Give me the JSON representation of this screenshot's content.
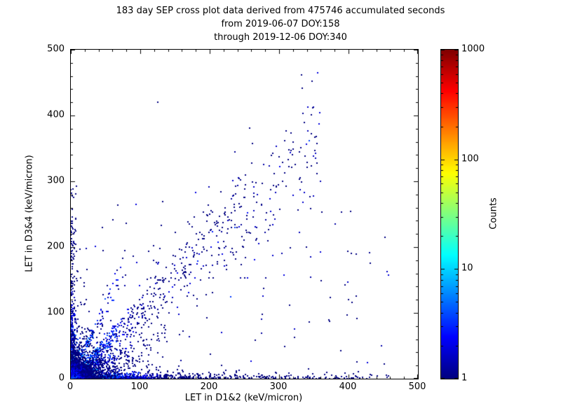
{
  "chart_data": {
    "type": "heatmap",
    "subtype": "2d-histogram-scatter",
    "title_lines": [
      "183 day SEP cross plot data derived from 475746 accumulated seconds",
      "from 2019-06-07 DOY:158",
      "through 2019-12-06 DOY:340"
    ],
    "xlabel": "LET in D1&2 (keV/micron)",
    "ylabel": "LET in D3&4 (keV/micron)",
    "xlim": [
      0,
      500
    ],
    "ylim": [
      0,
      500
    ],
    "xticks": [
      0,
      100,
      200,
      300,
      400,
      500
    ],
    "yticks": [
      0,
      100,
      200,
      300,
      400,
      500
    ],
    "minor_tick_step": 20,
    "grid": false,
    "marker_px": 2,
    "colorbar": {
      "label": "Counts",
      "scale": "log",
      "min": 1,
      "max": 1000,
      "ticks": [
        1,
        10,
        100,
        1000
      ],
      "colormap": "jet",
      "low_color": "#000080",
      "high_color": "#800000"
    },
    "distribution": {
      "description": "Very dense hot core (counts up to ~100-1000, yellow/green) within ~15 keV/micron of the origin; dense blue band along the x-axis out to ~460; blue band along the y-axis up to ~300; diagonal streaks (slopes ~0.55, ~1.05, ~2.2) fanning from the origin; sparse single-count (dark blue) points along the main diagonal up to ~(360,380) and scattered elsewhere.",
      "seed": 42,
      "clusters": [
        {
          "type": "blob",
          "name": "dense-core",
          "n": 3500,
          "scale": 7,
          "peak": 160,
          "decay": 3.0
        },
        {
          "type": "blob",
          "name": "core-halo",
          "n": 1000,
          "scale": 22,
          "peak": 3,
          "decay": 20
        },
        {
          "type": "hband",
          "name": "x-axis-band",
          "n": 900,
          "xmax": 460,
          "falloff": 85,
          "yscale": 3,
          "peak": 9
        },
        {
          "type": "vband",
          "name": "y-axis-band",
          "n": 420,
          "ymax": 295,
          "falloff": 65,
          "xscale": 3,
          "peak": 7
        },
        {
          "type": "diag",
          "name": "main-diagonal",
          "n": 520,
          "slope": 1.05,
          "xmax": 355,
          "falloff": 75,
          "spread0": 1.5,
          "spreadk": 0.13,
          "peak": 7
        },
        {
          "type": "diag",
          "name": "low-diagonal",
          "n": 190,
          "slope": 0.55,
          "xmax": 140,
          "falloff": 45,
          "spread0": 1.5,
          "spreadk": 0.1,
          "peak": 6
        },
        {
          "type": "diag",
          "name": "steep-diagonal",
          "n": 130,
          "slope": 2.2,
          "xmax": 75,
          "falloff": 30,
          "spread0": 1.5,
          "spreadk": 0.15,
          "peak": 6
        },
        {
          "type": "fan",
          "name": "lower-fan",
          "n": 420,
          "xmax": 130,
          "falloff": 40
        },
        {
          "type": "diagband",
          "name": "upper-diagonal-sparse",
          "n": 160,
          "slope": 1.0,
          "xmin": 110,
          "xmax": 360,
          "spread": 40
        },
        {
          "type": "uniform",
          "name": "sparse-background",
          "n": 130,
          "xmax": 460,
          "ymax": 280
        }
      ],
      "notable_points": [
        [
          125,
          420
        ],
        [
          332,
          462
        ],
        [
          347,
          452
        ],
        [
          258,
          381
        ],
        [
          300,
          337
        ],
        [
          296,
          291
        ],
        [
          329,
          345
        ],
        [
          352,
          347
        ],
        [
          345,
          258
        ],
        [
          398,
          97
        ],
        [
          452,
          22
        ],
        [
          237,
          293
        ],
        [
          214,
          247
        ],
        [
          188,
          167
        ],
        [
          262,
          357
        ]
      ]
    }
  }
}
